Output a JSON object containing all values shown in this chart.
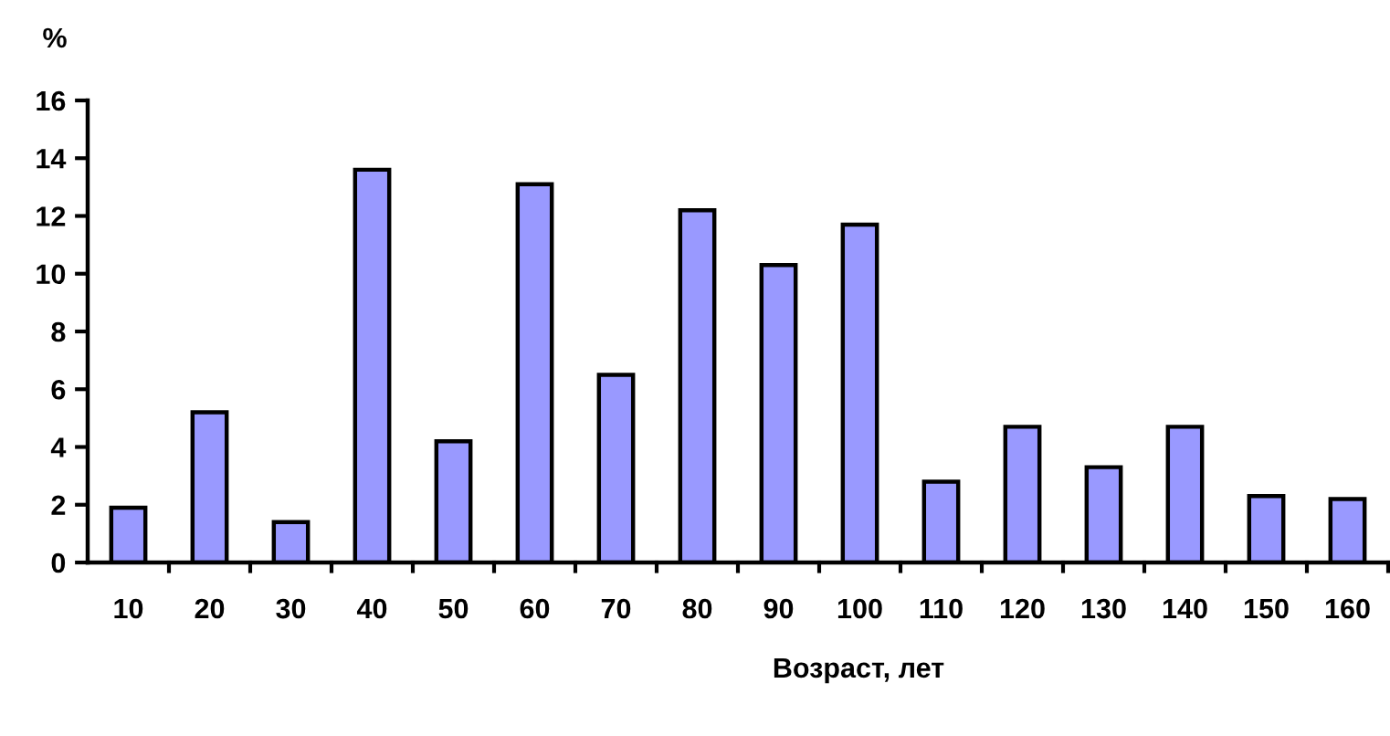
{
  "chart_data": {
    "type": "bar",
    "ylabel": "%",
    "xlabel": "Возраст, лет",
    "categories": [
      "10",
      "20",
      "30",
      "40",
      "50",
      "60",
      "70",
      "80",
      "90",
      "100",
      "110",
      "120",
      "130",
      "140",
      "150",
      "160"
    ],
    "values": [
      1.9,
      5.2,
      1.4,
      13.6,
      4.2,
      13.1,
      6.5,
      12.2,
      10.3,
      11.7,
      2.8,
      4.7,
      3.3,
      4.7,
      2.3,
      2.2
    ],
    "color": "#9999ff",
    "ylim": [
      0,
      16
    ],
    "yticks": [
      0,
      2,
      4,
      6,
      8,
      10,
      12,
      14,
      16
    ],
    "grid": false,
    "legend": false
  }
}
